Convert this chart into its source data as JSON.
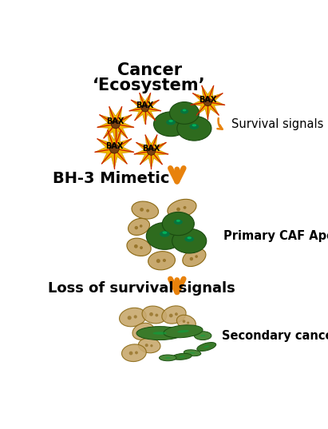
{
  "bg_color": "#ffffff",
  "arrow_color": "#E8820C",
  "title1": "Cancer",
  "title2": "‘Ecosystem’",
  "label_bh3": "BH-3 Mimetic",
  "label_loss": "Loss of survival signals",
  "label_survival": "Survival signals",
  "label_caf": "Primary CAF Apoptosis",
  "label_cancer_death": "Secondary cancer cell death",
  "bax_label": "BAX",
  "star_color_outer": "#F0B800",
  "star_color_inner": "#CC2200",
  "star_center_color": "#7A4010",
  "cancer_cell_color": "#2E6B1E",
  "cancer_cell_highlight": "#00AA44",
  "cancer_cell_highlight2": "#006622",
  "caf_color": "#C8A96E",
  "caf_dark": "#8B6914",
  "caf_detail": "#7A5500",
  "dead_flat_color": "#3A7A2A",
  "dead_small_color": "#4A8A3A",
  "title_fontsize": 15,
  "label_fontsize_bold": 13,
  "annotation_fontsize": 10.5,
  "bax_fontsize": 7
}
